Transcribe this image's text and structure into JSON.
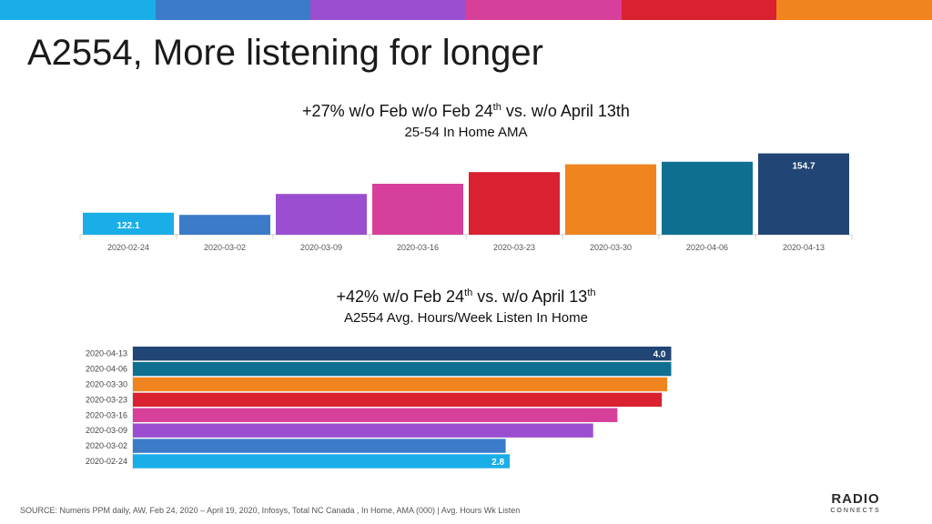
{
  "slide": {
    "title": "A2554, More listening for longer",
    "source": "SOURCE:  Numeris PPM daily, AW, Feb 24, 2020 – April 19, 2020, Infosys, Total NC Canada ,  In Home,  AMA (000) | Avg.  Hours Wk Listen",
    "logo_top": "RADIO",
    "logo_bottom": "CONNECTS"
  },
  "stripe_colors": [
    "#1aaee8",
    "#3b7bc8",
    "#9b4fd0",
    "#d6409a",
    "#d92130",
    "#f0841e"
  ],
  "chart_data": [
    {
      "type": "bar",
      "orientation": "vertical",
      "title_pre": "+27% w/o Feb w/o Feb 24",
      "title_sup": "th",
      "title_post": " vs. w/o April 13th",
      "subtitle": "25-54 In Home AMA",
      "categories": [
        "2020-02-24",
        "2020-03-02",
        "2020-03-09",
        "2020-03-16",
        "2020-03-23",
        "2020-03-30",
        "2020-04-06",
        "2020-04-13"
      ],
      "values": [
        122.1,
        120.9,
        132.4,
        138.0,
        144.4,
        148.7,
        150.1,
        154.7
      ],
      "data_labels": [
        "122.1",
        "",
        "",
        "",
        "",
        "",
        "",
        "154.7"
      ],
      "colors": [
        "#1aaee8",
        "#3b7bc8",
        "#9b4fd0",
        "#d6409a",
        "#d92130",
        "#f0841e",
        "#0e6f91",
        "#214574"
      ],
      "ylim": [
        110,
        160
      ]
    },
    {
      "type": "bar",
      "orientation": "horizontal",
      "title_pre": "+42% w/o Feb 24",
      "title_sup": "th",
      "title_post": " vs. w/o April 13",
      "title_sup2": "th",
      "subtitle": "A2554 Avg. Hours/Week Listen In Home",
      "categories": [
        "2020-04-13",
        "2020-04-06",
        "2020-03-30",
        "2020-03-23",
        "2020-03-16",
        "2020-03-09",
        "2020-03-02",
        "2020-02-24"
      ],
      "values": [
        4.0,
        4.0,
        3.97,
        3.93,
        3.6,
        3.42,
        2.77,
        2.8
      ],
      "data_labels": [
        "4.0",
        "",
        "",
        "",
        "",
        "",
        "",
        "2.8"
      ],
      "colors": [
        "#214574",
        "#0e6f91",
        "#f0841e",
        "#d92130",
        "#d6409a",
        "#9b4fd0",
        "#3b7bc8",
        "#1aaee8"
      ],
      "xlim": [
        0,
        4.22
      ]
    }
  ]
}
